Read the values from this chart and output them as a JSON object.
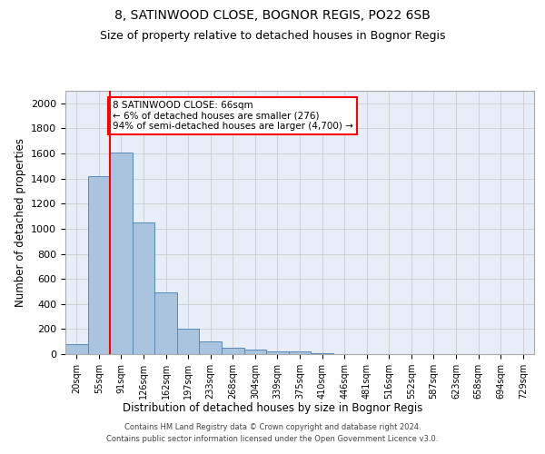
{
  "title": "8, SATINWOOD CLOSE, BOGNOR REGIS, PO22 6SB",
  "subtitle": "Size of property relative to detached houses in Bognor Regis",
  "xlabel": "Distribution of detached houses by size in Bognor Regis",
  "ylabel": "Number of detached properties",
  "bar_labels": [
    "20sqm",
    "55sqm",
    "91sqm",
    "126sqm",
    "162sqm",
    "197sqm",
    "233sqm",
    "268sqm",
    "304sqm",
    "339sqm",
    "375sqm",
    "410sqm",
    "446sqm",
    "481sqm",
    "516sqm",
    "552sqm",
    "587sqm",
    "623sqm",
    "658sqm",
    "694sqm",
    "729sqm"
  ],
  "bar_values": [
    80,
    1420,
    1610,
    1050,
    490,
    205,
    105,
    50,
    35,
    25,
    20,
    10,
    0,
    0,
    0,
    0,
    0,
    0,
    0,
    0,
    0
  ],
  "bar_color": "#aac4e0",
  "bar_edge_color": "#5588bb",
  "grid_color": "#cccccc",
  "bg_color": "#e8eef8",
  "vline_x": 1.5,
  "vline_color": "red",
  "annotation_text": "8 SATINWOOD CLOSE: 66sqm\n← 6% of detached houses are smaller (276)\n94% of semi-detached houses are larger (4,700) →",
  "annotation_box_color": "white",
  "annotation_box_edge": "red",
  "ylim": [
    0,
    2100
  ],
  "yticks": [
    0,
    200,
    400,
    600,
    800,
    1000,
    1200,
    1400,
    1600,
    1800,
    2000
  ],
  "footer": "Contains HM Land Registry data © Crown copyright and database right 2024.\nContains public sector information licensed under the Open Government Licence v3.0."
}
